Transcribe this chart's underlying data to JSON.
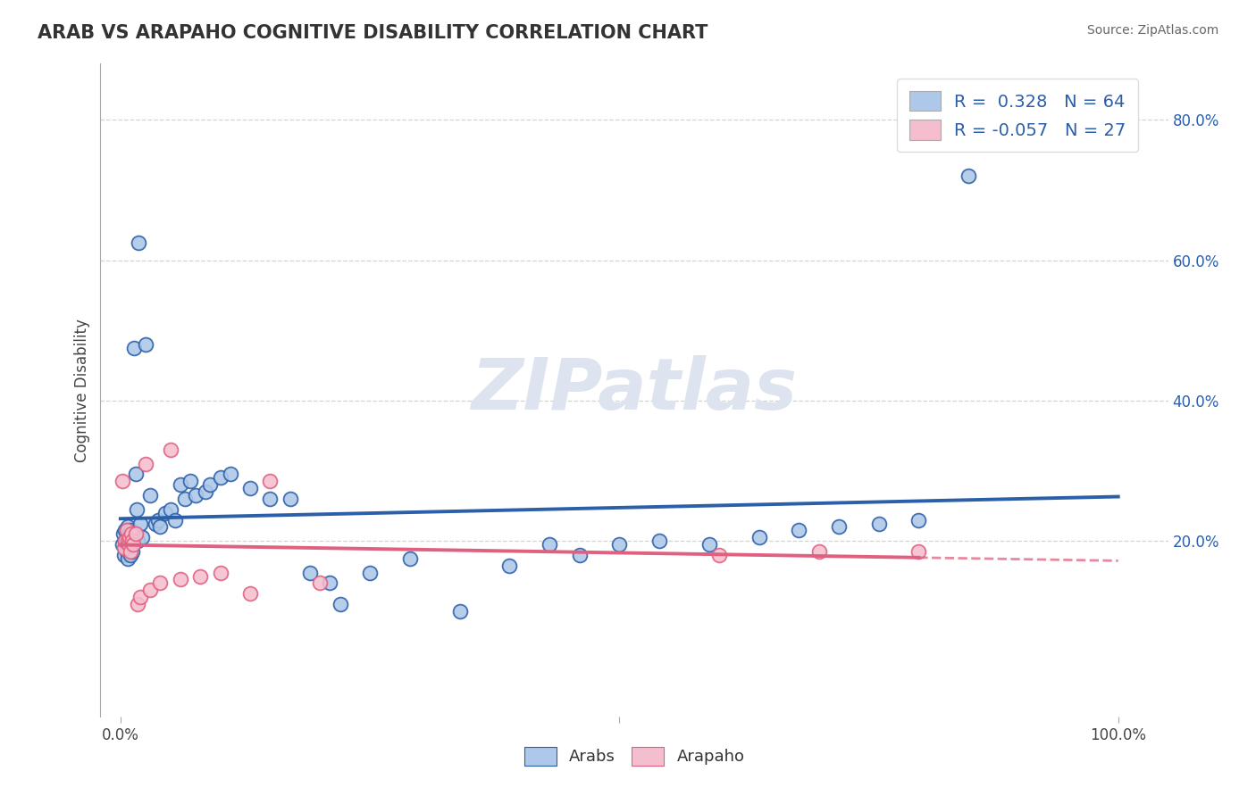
{
  "title": "ARAB VS ARAPAHO COGNITIVE DISABILITY CORRELATION CHART",
  "source": "Source: ZipAtlas.com",
  "ylabel": "Cognitive Disability",
  "arab_R": 0.328,
  "arab_N": 64,
  "arapaho_R": -0.057,
  "arapaho_N": 27,
  "arab_color": "#adc8e8",
  "arab_line_color": "#2b5faa",
  "arapaho_color": "#f5bece",
  "arapaho_line_color": "#e06080",
  "background_color": "#ffffff",
  "grid_color": "#c8c8c8",
  "watermark_color": "#dde4ef",
  "legend_label_arab": "Arabs",
  "legend_label_arapaho": "Arapaho",
  "arab_x": [
    0.002,
    0.003,
    0.004,
    0.005,
    0.005,
    0.006,
    0.006,
    0.007,
    0.007,
    0.008,
    0.008,
    0.009,
    0.009,
    0.01,
    0.01,
    0.011,
    0.011,
    0.012,
    0.012,
    0.013,
    0.014,
    0.015,
    0.016,
    0.017,
    0.018,
    0.02,
    0.022,
    0.025,
    0.03,
    0.035,
    0.038,
    0.04,
    0.045,
    0.05,
    0.055,
    0.06,
    0.065,
    0.07,
    0.075,
    0.085,
    0.09,
    0.1,
    0.11,
    0.13,
    0.15,
    0.17,
    0.19,
    0.21,
    0.22,
    0.25,
    0.29,
    0.34,
    0.39,
    0.43,
    0.46,
    0.5,
    0.54,
    0.59,
    0.64,
    0.68,
    0.72,
    0.76,
    0.8,
    0.85
  ],
  "arab_y": [
    0.195,
    0.21,
    0.18,
    0.2,
    0.215,
    0.19,
    0.185,
    0.22,
    0.175,
    0.205,
    0.2,
    0.195,
    0.21,
    0.18,
    0.215,
    0.19,
    0.2,
    0.185,
    0.195,
    0.21,
    0.475,
    0.295,
    0.245,
    0.2,
    0.625,
    0.225,
    0.205,
    0.48,
    0.265,
    0.225,
    0.23,
    0.22,
    0.24,
    0.245,
    0.23,
    0.28,
    0.26,
    0.285,
    0.265,
    0.27,
    0.28,
    0.29,
    0.295,
    0.275,
    0.26,
    0.26,
    0.155,
    0.14,
    0.11,
    0.155,
    0.175,
    0.1,
    0.165,
    0.195,
    0.18,
    0.195,
    0.2,
    0.195,
    0.205,
    0.215,
    0.22,
    0.225,
    0.23,
    0.72
  ],
  "arapaho_x": [
    0.002,
    0.004,
    0.005,
    0.006,
    0.007,
    0.008,
    0.009,
    0.01,
    0.011,
    0.012,
    0.013,
    0.015,
    0.017,
    0.02,
    0.025,
    0.03,
    0.04,
    0.05,
    0.06,
    0.08,
    0.1,
    0.13,
    0.15,
    0.2,
    0.6,
    0.7,
    0.8
  ],
  "arapaho_y": [
    0.285,
    0.19,
    0.2,
    0.215,
    0.2,
    0.195,
    0.205,
    0.185,
    0.21,
    0.2,
    0.195,
    0.21,
    0.11,
    0.12,
    0.31,
    0.13,
    0.14,
    0.33,
    0.145,
    0.15,
    0.155,
    0.125,
    0.285,
    0.14,
    0.18,
    0.185,
    0.185
  ],
  "yticks": [
    0.2,
    0.4,
    0.6,
    0.8
  ],
  "ytick_labels": [
    "20.0%",
    "40.0%",
    "60.0%",
    "80.0%"
  ],
  "xlim": [
    -0.02,
    1.05
  ],
  "ylim": [
    -0.05,
    0.88
  ]
}
